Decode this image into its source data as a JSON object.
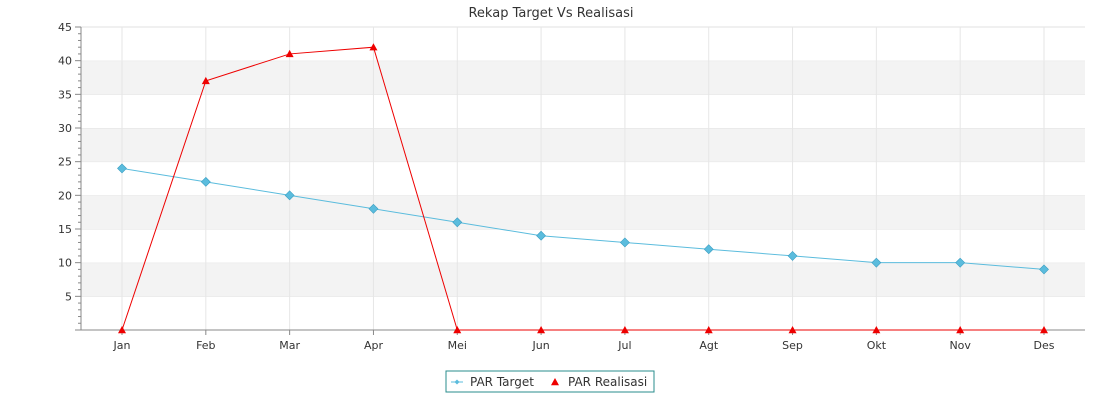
{
  "chart_data": {
    "type": "line",
    "title": "Rekap Target Vs Realisasi",
    "xlabel": "",
    "ylabel": "",
    "categories": [
      "Jan",
      "Feb",
      "Mar",
      "Apr",
      "Mei",
      "Jun",
      "Jul",
      "Agt",
      "Sep",
      "Okt",
      "Nov",
      "Des"
    ],
    "ylim": [
      0,
      45
    ],
    "yticks": [
      5,
      10,
      15,
      20,
      25,
      30,
      35,
      40,
      45
    ],
    "grid": "horizontal bands + vertical lines",
    "legend_position": "bottom-center",
    "series": [
      {
        "name": "PAR Target",
        "color": "#5bbcdd",
        "marker": "diamond",
        "values": [
          24,
          22,
          20,
          18,
          16,
          14,
          13,
          12,
          11,
          10,
          10,
          9
        ]
      },
      {
        "name": "PAR Realisasi",
        "color": "#ee0000",
        "marker": "triangle",
        "values": [
          0,
          37,
          41,
          42,
          0,
          0,
          0,
          0,
          0,
          0,
          0,
          0
        ]
      }
    ]
  }
}
